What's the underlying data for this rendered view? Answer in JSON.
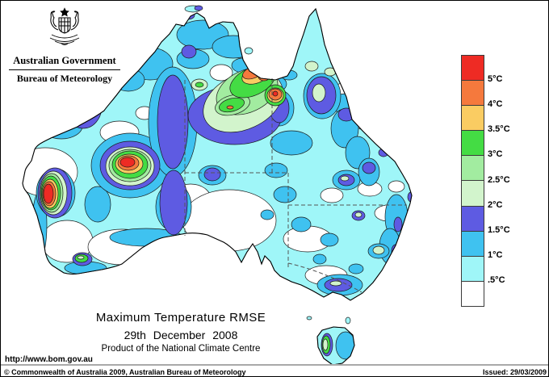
{
  "header": {
    "government": "Australian Government",
    "bureau": "Bureau of Meteorology"
  },
  "legend": {
    "labels": [
      "5°C",
      "4°C",
      "3.5°C",
      "3°C",
      "2.5°C",
      "2°C",
      "1.5°C",
      "1°C",
      ".5°C"
    ],
    "colors": [
      "#EE2B24",
      "#F5793D",
      "#FACC62",
      "#44DC44",
      "#A2ECA0",
      "#D2F4CC",
      "#5E5BE2",
      "#3FC2F0",
      "#9FF6F8",
      "#FFFFFF"
    ]
  },
  "map": {
    "title": "Maximum Temperature RMSE",
    "date": "29th December 2008",
    "product": "Product of the National Climate Centre",
    "url": "http://www.bom.gov.au"
  },
  "footer": {
    "copyright": "© Commonwealth of Australia 2009, Australian Bureau of Meteorology",
    "issued": "Issued: 29/03/2009"
  },
  "palette": {
    "red": "#EE2B24",
    "orange": "#F5793D",
    "amber": "#FACC62",
    "green": "#44DC44",
    "midgreen": "#A2ECA0",
    "palegreen": "#D2F4CC",
    "purple": "#5E5BE2",
    "blue": "#3FC2F0",
    "cyan": "#9FF6F8",
    "white": "#FFFFFF"
  }
}
